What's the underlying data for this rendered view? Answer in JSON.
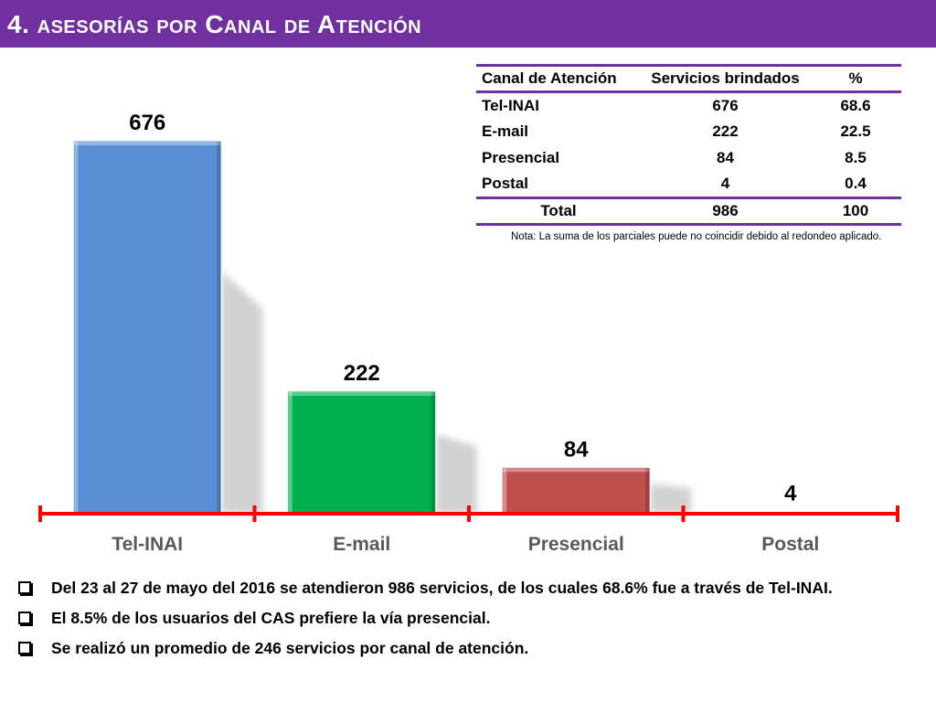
{
  "slide": {
    "title": "4. asesorías por Canal de Atención"
  },
  "chart_data": {
    "type": "bar",
    "categories": [
      "Tel-INAI",
      "E-mail",
      "Presencial",
      "Postal"
    ],
    "values": [
      676,
      222,
      84,
      4
    ],
    "data_labels": [
      "676",
      "222",
      "84",
      "4"
    ],
    "colors": [
      "#5b8fd5",
      "#00b050",
      "#c0504d",
      "#c0504d"
    ],
    "axis_color": "#ff0000",
    "ylim": [
      0,
      676
    ],
    "grid": false,
    "title": "",
    "xlabel": "",
    "ylabel": ""
  },
  "table": {
    "headers": [
      "Canal de Atención",
      "Servicios brindados",
      "%"
    ],
    "rows": [
      [
        "Tel-INAI",
        "676",
        "68.6"
      ],
      [
        "E-mail",
        "222",
        "22.5"
      ],
      [
        "Presencial",
        "84",
        "8.5"
      ],
      [
        "Postal",
        "4",
        "0.4"
      ]
    ],
    "total": [
      "Total",
      "986",
      "100"
    ],
    "border_color": "#7030a0",
    "note": "Nota: La suma de los parciales puede no coincidir debido al redondeo aplicado."
  },
  "bullets": [
    "Del 23 al 27 de mayo del 2016 se atendieron 986 servicios, de los cuales 68.6% fue a través de Tel-INAI.",
    "El 8.5% de los usuarios del CAS prefiere la vía presencial.",
    "Se realizó un promedio de 246 servicios por canal de atención."
  ]
}
